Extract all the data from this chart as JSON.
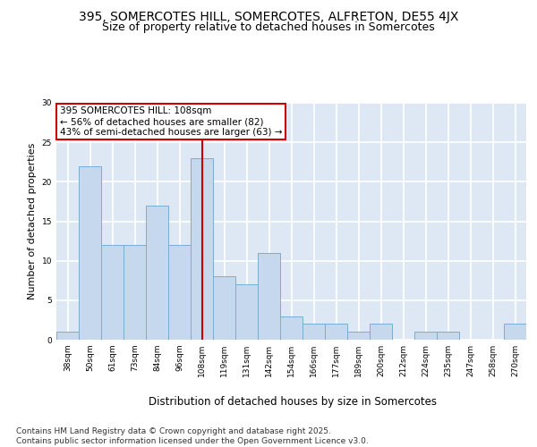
{
  "title1": "395, SOMERCOTES HILL, SOMERCOTES, ALFRETON, DE55 4JX",
  "title2": "Size of property relative to detached houses in Somercotes",
  "xlabel": "Distribution of detached houses by size in Somercotes",
  "ylabel": "Number of detached properties",
  "categories": [
    "38sqm",
    "50sqm",
    "61sqm",
    "73sqm",
    "84sqm",
    "96sqm",
    "108sqm",
    "119sqm",
    "131sqm",
    "142sqm",
    "154sqm",
    "166sqm",
    "177sqm",
    "189sqm",
    "200sqm",
    "212sqm",
    "224sqm",
    "235sqm",
    "247sqm",
    "258sqm",
    "270sqm"
  ],
  "values": [
    1,
    22,
    12,
    12,
    17,
    12,
    23,
    8,
    7,
    11,
    3,
    2,
    2,
    1,
    2,
    0,
    1,
    1,
    0,
    0,
    2
  ],
  "bar_color": "#c5d8ed",
  "bar_edge_color": "#7badd1",
  "highlight_index": 6,
  "highlight_line_color": "#cc0000",
  "annotation_text": "395 SOMERCOTES HILL: 108sqm\n← 56% of detached houses are smaller (82)\n43% of semi-detached houses are larger (63) →",
  "annotation_box_color": "#ffffff",
  "annotation_box_edge_color": "#cc0000",
  "ylim": [
    0,
    30
  ],
  "yticks": [
    0,
    5,
    10,
    15,
    20,
    25,
    30
  ],
  "background_color": "#dde8f4",
  "grid_color": "#ffffff",
  "footer": "Contains HM Land Registry data © Crown copyright and database right 2025.\nContains public sector information licensed under the Open Government Licence v3.0.",
  "title1_fontsize": 10,
  "title2_fontsize": 9,
  "xlabel_fontsize": 8.5,
  "ylabel_fontsize": 8,
  "tick_fontsize": 6.5,
  "annotation_fontsize": 7.5,
  "footer_fontsize": 6.5
}
